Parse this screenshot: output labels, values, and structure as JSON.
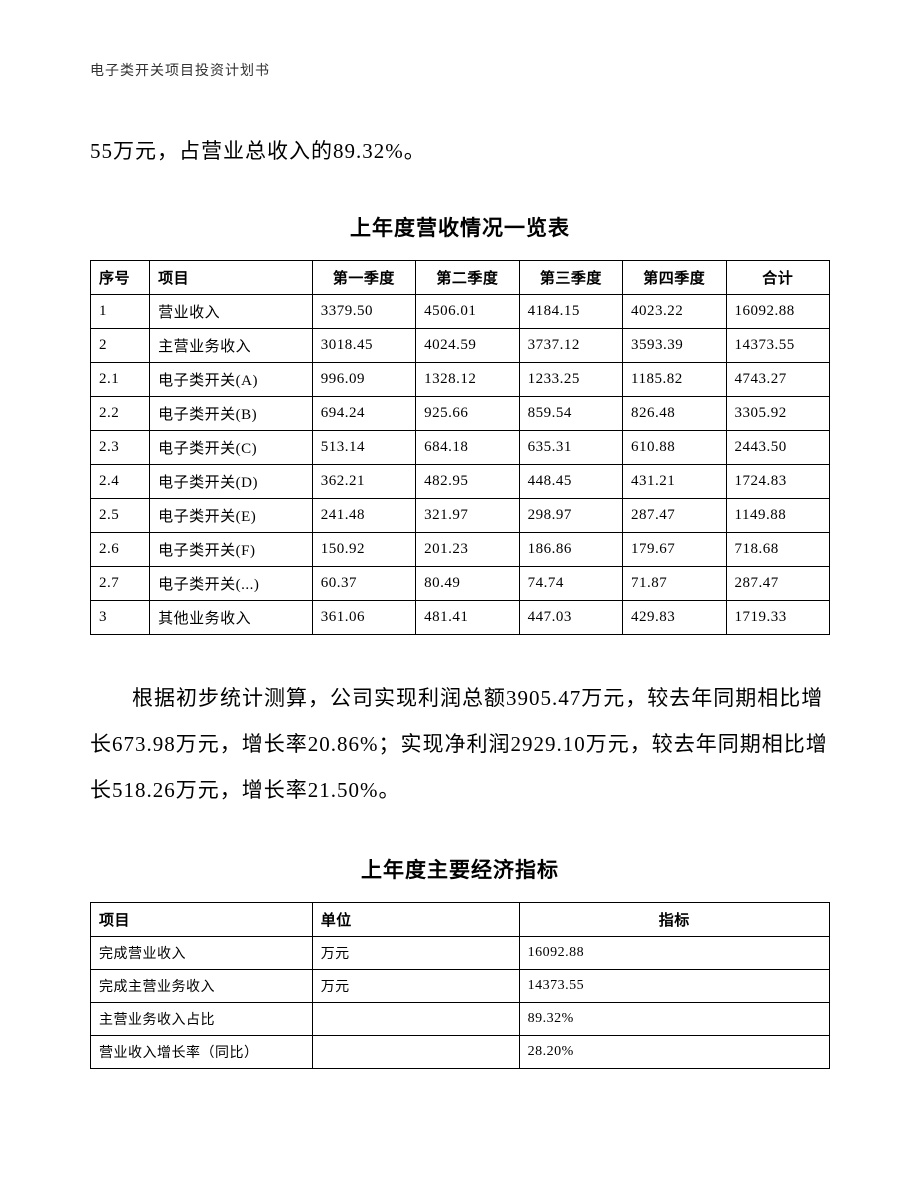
{
  "header": "电子类开关项目投资计划书",
  "intro_text": "55万元，占营业总收入的89.32%。",
  "table1": {
    "title": "上年度营收情况一览表",
    "columns": [
      "序号",
      "项目",
      "第一季度",
      "第二季度",
      "第三季度",
      "第四季度",
      "合计"
    ],
    "rows": [
      [
        "1",
        "营业收入",
        "3379.50",
        "4506.01",
        "4184.15",
        "4023.22",
        "16092.88"
      ],
      [
        "2",
        "主营业务收入",
        "3018.45",
        "4024.59",
        "3737.12",
        "3593.39",
        "14373.55"
      ],
      [
        "2.1",
        "电子类开关(A)",
        "996.09",
        "1328.12",
        "1233.25",
        "1185.82",
        "4743.27"
      ],
      [
        "2.2",
        "电子类开关(B)",
        "694.24",
        "925.66",
        "859.54",
        "826.48",
        "3305.92"
      ],
      [
        "2.3",
        "电子类开关(C)",
        "513.14",
        "684.18",
        "635.31",
        "610.88",
        "2443.50"
      ],
      [
        "2.4",
        "电子类开关(D)",
        "362.21",
        "482.95",
        "448.45",
        "431.21",
        "1724.83"
      ],
      [
        "2.5",
        "电子类开关(E)",
        "241.48",
        "321.97",
        "298.97",
        "287.47",
        "1149.88"
      ],
      [
        "2.6",
        "电子类开关(F)",
        "150.92",
        "201.23",
        "186.86",
        "179.67",
        "718.68"
      ],
      [
        "2.7",
        "电子类开关(...)",
        "60.37",
        "80.49",
        "74.74",
        "71.87",
        "287.47"
      ],
      [
        "3",
        "其他业务收入",
        "361.06",
        "481.41",
        "447.03",
        "429.83",
        "1719.33"
      ]
    ]
  },
  "body_text": "根据初步统计测算，公司实现利润总额3905.47万元，较去年同期相比增长673.98万元，增长率20.86%；实现净利润2929.10万元，较去年同期相比增长518.26万元，增长率21.50%。",
  "table2": {
    "title": "上年度主要经济指标",
    "columns": [
      "项目",
      "单位",
      "指标"
    ],
    "rows": [
      [
        "完成营业收入",
        "万元",
        "16092.88"
      ],
      [
        "完成主营业务收入",
        "万元",
        "14373.55"
      ],
      [
        "主营业务收入占比",
        "",
        "89.32%"
      ],
      [
        "营业收入增长率（同比）",
        "",
        "28.20%"
      ]
    ]
  }
}
